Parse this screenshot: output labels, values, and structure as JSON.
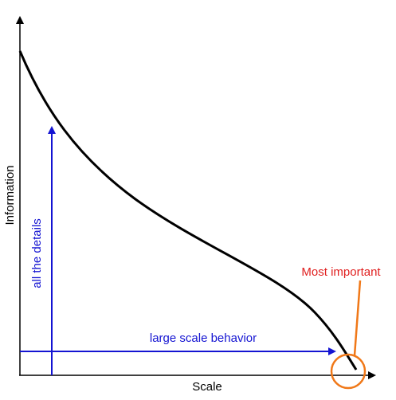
{
  "axes": {
    "y_label": "Information",
    "x_label": "Scale"
  },
  "annotations": {
    "vertical_arrow": "all the details",
    "horizontal_arrow": "large scale behavior",
    "highlight": "Most important"
  }
}
